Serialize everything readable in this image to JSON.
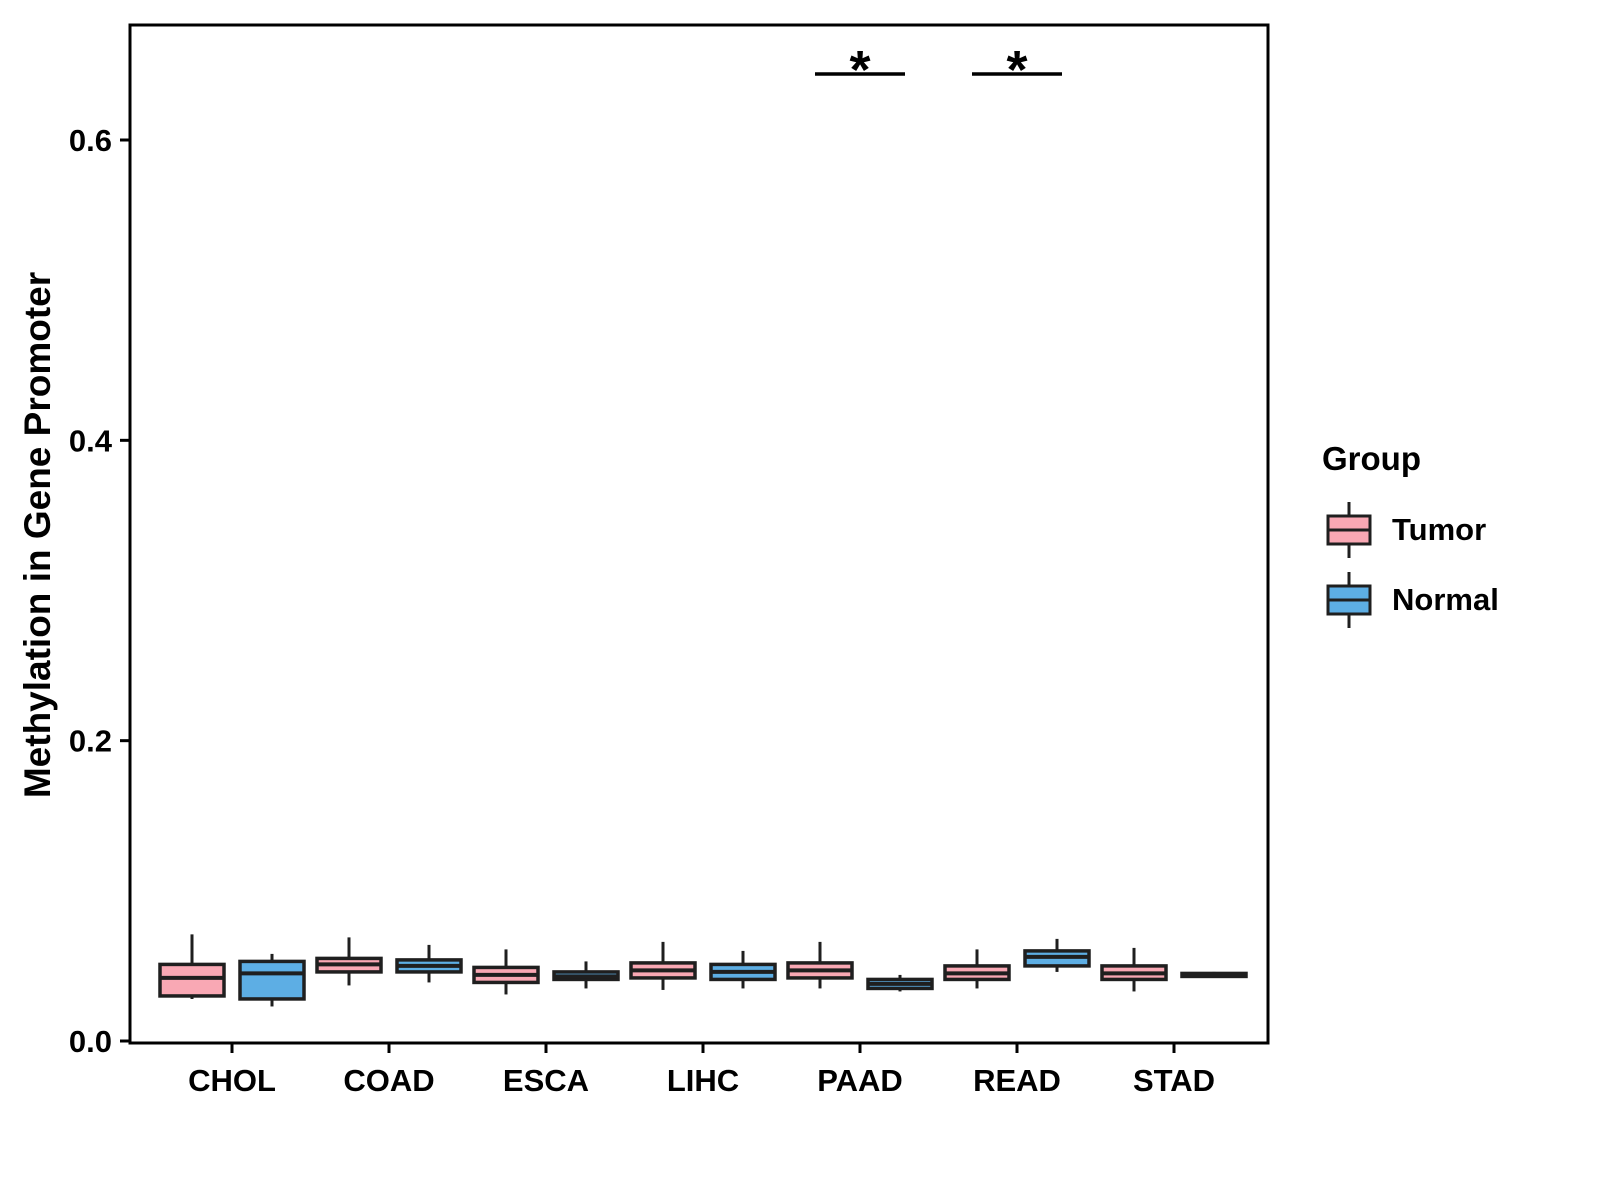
{
  "chart_data": {
    "type": "boxplot",
    "title": "",
    "xlabel": "",
    "ylabel": "Methylation in Gene Promoter",
    "ylim": [
      0,
      0.676
    ],
    "yticks": [
      "0.0",
      "0.2",
      "0.4",
      "0.6"
    ],
    "ytick_values": [
      0.0,
      0.2,
      0.4,
      0.6
    ],
    "categories": [
      "CHOL",
      "COAD",
      "ESCA",
      "LIHC",
      "PAAD",
      "READ",
      "STAD"
    ],
    "grid": "off",
    "legend": {
      "title": "Group",
      "position": "right",
      "entries": [
        {
          "label": "Tumor",
          "color": "#F9A8B4"
        },
        {
          "label": "Normal",
          "color": "#5DAEE4"
        }
      ]
    },
    "series": [
      {
        "name": "Tumor",
        "color": "#F9A8B4",
        "boxes": [
          {
            "category": "CHOL",
            "min": 0.028,
            "q1": 0.03,
            "median": 0.042,
            "q3": 0.051,
            "max": 0.071
          },
          {
            "category": "COAD",
            "min": 0.037,
            "q1": 0.046,
            "median": 0.051,
            "q3": 0.055,
            "max": 0.069
          },
          {
            "category": "ESCA",
            "min": 0.031,
            "q1": 0.039,
            "median": 0.044,
            "q3": 0.049,
            "max": 0.061
          },
          {
            "category": "LIHC",
            "min": 0.034,
            "q1": 0.042,
            "median": 0.047,
            "q3": 0.052,
            "max": 0.066
          },
          {
            "category": "PAAD",
            "min": 0.035,
            "q1": 0.042,
            "median": 0.047,
            "q3": 0.052,
            "max": 0.066
          },
          {
            "category": "READ",
            "min": 0.035,
            "q1": 0.041,
            "median": 0.045,
            "q3": 0.05,
            "max": 0.061
          },
          {
            "category": "STAD",
            "min": 0.033,
            "q1": 0.041,
            "median": 0.045,
            "q3": 0.05,
            "max": 0.062
          }
        ]
      },
      {
        "name": "Normal",
        "color": "#5DAEE4",
        "boxes": [
          {
            "category": "CHOL",
            "min": 0.023,
            "q1": 0.028,
            "median": 0.045,
            "q3": 0.053,
            "max": 0.058
          },
          {
            "category": "COAD",
            "min": 0.039,
            "q1": 0.046,
            "median": 0.05,
            "q3": 0.054,
            "max": 0.064
          },
          {
            "category": "ESCA",
            "min": 0.035,
            "q1": 0.041,
            "median": 0.043,
            "q3": 0.046,
            "max": 0.053
          },
          {
            "category": "LIHC",
            "min": 0.035,
            "q1": 0.041,
            "median": 0.046,
            "q3": 0.051,
            "max": 0.06
          },
          {
            "category": "PAAD",
            "min": 0.033,
            "q1": 0.035,
            "median": 0.038,
            "q3": 0.041,
            "max": 0.044
          },
          {
            "category": "READ",
            "min": 0.046,
            "q1": 0.05,
            "median": 0.056,
            "q3": 0.06,
            "max": 0.068
          },
          {
            "category": "STAD",
            "min": 0.042,
            "q1": 0.043,
            "median": 0.044,
            "q3": 0.045,
            "max": 0.046
          }
        ]
      }
    ],
    "significance": [
      {
        "category": "PAAD",
        "label": "*"
      },
      {
        "category": "READ",
        "label": "*"
      }
    ]
  },
  "style": {
    "box_outline": "#1F1F1F",
    "axis_color": "#000000",
    "text_color": "#000000",
    "background": "#FFFFFF"
  }
}
